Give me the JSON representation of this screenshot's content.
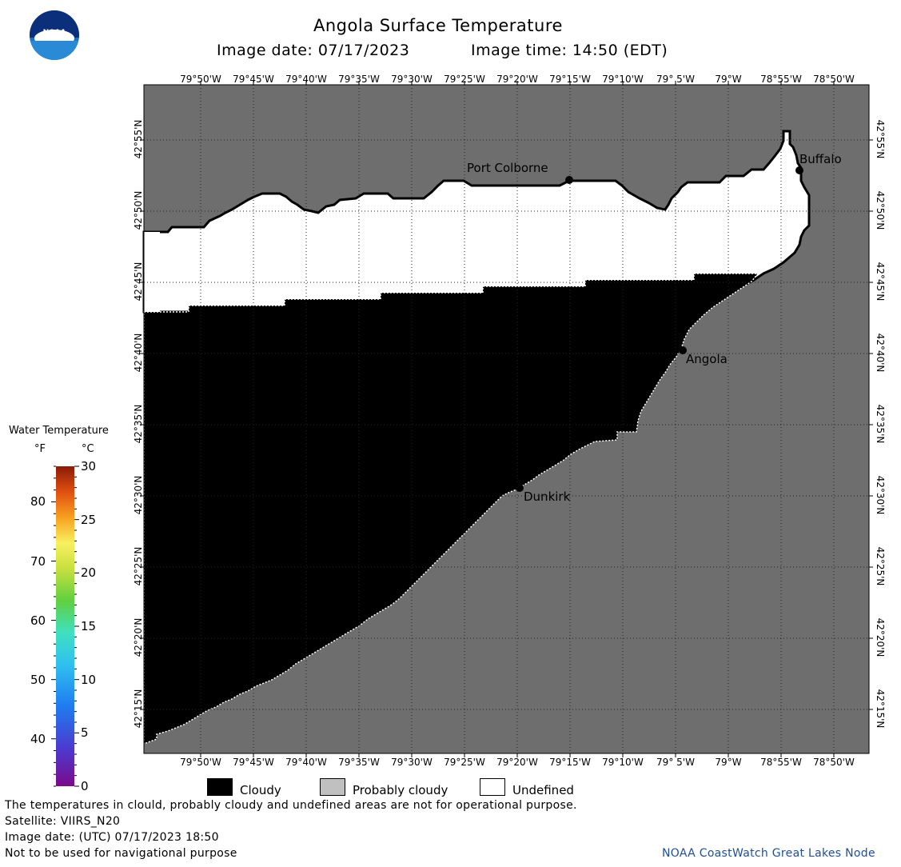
{
  "header": {
    "title": "Angola Surface Temperature",
    "image_date": "Image date: 07/17/2023",
    "image_time": "Image time: 14:50 (EDT)"
  },
  "logo": {
    "text": "NOAA"
  },
  "map": {
    "lon_labels": [
      "79°50'W",
      "79°45'W",
      "79°40'W",
      "79°35'W",
      "79°30'W",
      "79°25'W",
      "79°20'W",
      "79°15'W",
      "79°10'W",
      "79° 5'W",
      "79°W",
      "78°55'W",
      "78°50'W"
    ],
    "lat_labels": [
      "42°55'N",
      "42°50'N",
      "42°45'N",
      "42°40'N",
      "42°35'N",
      "42°30'N",
      "42°25'N",
      "42°20'N",
      "42°15'N"
    ],
    "cities": [
      {
        "name": "Port Colborne"
      },
      {
        "name": "Buffalo"
      },
      {
        "name": "Angola"
      },
      {
        "name": "Dunkirk"
      }
    ],
    "colors": {
      "land": "#6e6e6e",
      "cloudy": "#000000",
      "undefined": "#ffffff"
    }
  },
  "colorbar": {
    "title": "Water Temperature",
    "unit_f": "°F",
    "unit_c": "°C",
    "f_labels": [
      "80",
      "70",
      "60",
      "50",
      "40"
    ],
    "c_labels": [
      "30",
      "25",
      "20",
      "15",
      "10",
      "5",
      "0"
    ]
  },
  "legend": {
    "items": [
      {
        "label": "Cloudy",
        "color": "#000000"
      },
      {
        "label": "Probably cloudy",
        "color": "#c0c0c0"
      },
      {
        "label": "Undefined",
        "color": "#ffffff"
      }
    ]
  },
  "footer": {
    "line1": "The temperatures in clould, probably cloudy and undefined areas are not for operational purpose.",
    "line2": "Satellite: VIIRS_N20",
    "line3": "Image date: (UTC) 07/17/2023  18:50",
    "line4": "Not to be used for navigational purpose",
    "credit": "NOAA CoastWatch Great Lakes Node"
  }
}
